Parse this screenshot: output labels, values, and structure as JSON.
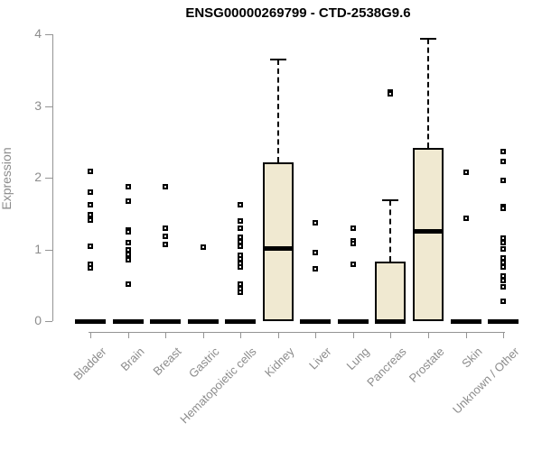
{
  "chart_data": {
    "type": "boxplot",
    "title": "ENSG00000269799 - CTD-2538G9.6",
    "ylabel": "Expression",
    "yticks": [
      0,
      1,
      2,
      3,
      4
    ],
    "ylim": [
      0,
      4
    ],
    "grid": false,
    "legend": false,
    "categories": [
      "Bladder",
      "Brain",
      "Breast",
      "Gastric",
      "Hematopoietic cells",
      "Kidney",
      "Liver",
      "Lung",
      "Pancreas",
      "Prostate",
      "Skin",
      "Unknown / Other"
    ],
    "boxes": [
      {
        "category": "Bladder",
        "q1": 0,
        "median": 0,
        "q3": 0,
        "whisker_high": null,
        "outliers": [
          2.09,
          1.8,
          1.62,
          1.48,
          1.41,
          1.04,
          0.79,
          0.74
        ]
      },
      {
        "category": "Brain",
        "q1": 0,
        "median": 0,
        "q3": 0,
        "whisker_high": null,
        "outliers": [
          1.87,
          1.67,
          1.27,
          1.25,
          1.1,
          0.99,
          0.93,
          0.86,
          0.52
        ]
      },
      {
        "category": "Breast",
        "q1": 0,
        "median": 0,
        "q3": 0,
        "whisker_high": null,
        "outliers": [
          1.87,
          1.3,
          1.18,
          1.07
        ]
      },
      {
        "category": "Gastric",
        "q1": 0,
        "median": 0,
        "q3": 0,
        "whisker_high": null,
        "outliers": [
          1.03
        ]
      },
      {
        "category": "Hematopoietic cells",
        "q1": 0,
        "median": 0,
        "q3": 0,
        "whisker_high": null,
        "outliers": [
          1.62,
          1.4,
          1.3,
          1.17,
          1.11,
          1.04,
          0.92,
          0.87,
          0.81,
          0.76,
          0.51,
          0.45,
          0.4
        ]
      },
      {
        "category": "Kidney",
        "q1": 0,
        "median": 1.02,
        "q3": 2.21,
        "whisker_high": 3.65,
        "outliers": []
      },
      {
        "category": "Liver",
        "q1": 0,
        "median": 0,
        "q3": 0,
        "whisker_high": null,
        "outliers": [
          1.37,
          0.95,
          0.73
        ]
      },
      {
        "category": "Lung",
        "q1": 0,
        "median": 0,
        "q3": 0,
        "whisker_high": null,
        "outliers": [
          1.29,
          1.12,
          1.08,
          0.79
        ]
      },
      {
        "category": "Pancreas",
        "q1": 0,
        "median": 0,
        "q3": 0.83,
        "whisker_high": 1.69,
        "outliers": [
          3.2,
          3.17
        ]
      },
      {
        "category": "Prostate",
        "q1": 0,
        "median": 1.26,
        "q3": 2.42,
        "whisker_high": 3.94,
        "outliers": []
      },
      {
        "category": "Skin",
        "q1": 0,
        "median": 0,
        "q3": 0,
        "whisker_high": null,
        "outliers": [
          2.08,
          1.44
        ]
      },
      {
        "category": "Unknown / Other",
        "q1": 0,
        "median": 0,
        "q3": 0,
        "whisker_high": null,
        "outliers": [
          2.37,
          2.23,
          1.96,
          1.6,
          1.57,
          1.16,
          1.1,
          1.01,
          0.88,
          0.82,
          0.76,
          0.63,
          0.57,
          0.48,
          0.28
        ]
      }
    ],
    "colors": {
      "box_fill": "#F0E9D1",
      "box_border": "#000000",
      "median": "#000000",
      "whisker": "#000000",
      "outlier": "#000000",
      "axis": "#949494",
      "tick_label": "#8C8C8C",
      "title": "#000000"
    }
  }
}
